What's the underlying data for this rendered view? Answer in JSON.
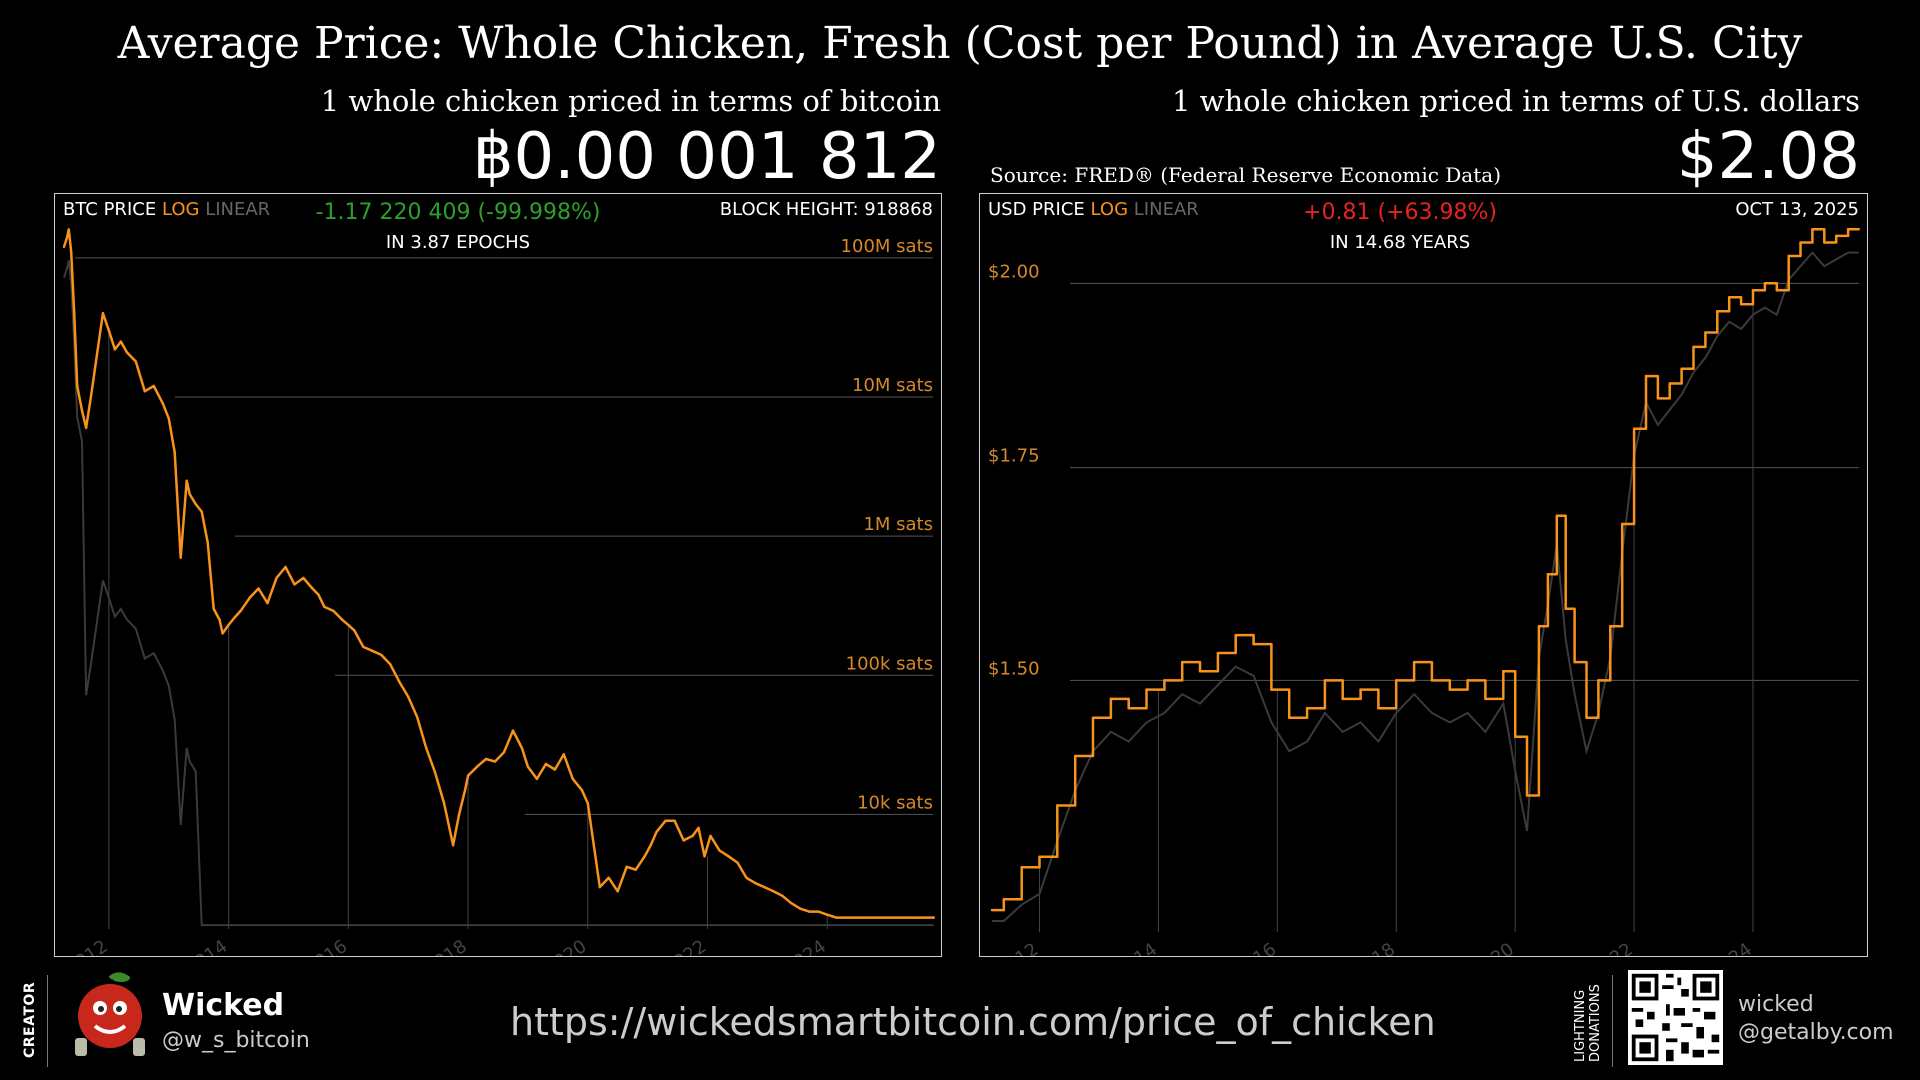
{
  "title": "Average Price: Whole Chicken, Fresh (Cost per Pound) in Average U.S. City",
  "left_header": {
    "subtitle": "1 whole chicken priced in terms of bitcoin",
    "price": "฿0.00 001 812"
  },
  "right_header": {
    "subtitle": "1 whole chicken priced in terms of U.S. dollars",
    "price": "$2.08",
    "source": "Source: FRED® (Federal Reserve Economic Data)"
  },
  "left_panel": {
    "label_price": "BTC PRICE",
    "label_log": "LOG",
    "label_linear": "LINEAR",
    "change": "-1.17 220 409 (-99.998%)",
    "change_period": "IN 3.87 EPOCHS",
    "corner": "BLOCK HEIGHT: 918868"
  },
  "right_panel": {
    "label_price": "USD PRICE",
    "label_log": "LOG",
    "label_linear": "LINEAR",
    "change": "+0.81 (+63.98%)",
    "change_period": "IN 14.68 YEARS",
    "corner": "OCT 13, 2025"
  },
  "colors": {
    "accent": "#f7931a",
    "gray_series": "#3a3a3a",
    "gridline": "#555555",
    "up": "#e8231e",
    "down": "#2ca02c"
  },
  "chart_data": [
    {
      "type": "line",
      "scale": "log",
      "unit": "sats",
      "ylabel_ticks": [
        "100M sats",
        "10M sats",
        "1M sats",
        "100k sats",
        "10k sats"
      ],
      "ytick_values": [
        100000000,
        10000000,
        1000000,
        100000,
        10000
      ],
      "ylim": [
        1500,
        200000000
      ],
      "xlim": [
        2011.2,
        2025.8
      ],
      "xticks": [
        "2012",
        "2014",
        "2016",
        "2018",
        "2020",
        "2022",
        "2024"
      ],
      "series": [
        {
          "x": [
            2011.25,
            2011.3,
            2011.33,
            2011.37,
            2011.42,
            2011.47,
            2011.55,
            2011.62,
            2011.7,
            2011.8,
            2011.9,
            2012.0,
            2012.1,
            2012.2,
            2012.3,
            2012.45,
            2012.6,
            2012.75,
            2012.9,
            2013.0,
            2013.1,
            2013.2,
            2013.3,
            2013.35,
            2013.45,
            2013.55,
            2013.65,
            2013.75,
            2013.85,
            2013.9,
            2014.0,
            2014.1,
            2014.2,
            2014.35,
            2014.5,
            2014.65,
            2014.8,
            2014.95,
            2015.1,
            2015.25,
            2015.4,
            2015.5,
            2015.6,
            2015.75,
            2015.9,
            2016.0,
            2016.1,
            2016.25,
            2016.4,
            2016.55,
            2016.7,
            2016.85,
            2017.0,
            2017.15,
            2017.3,
            2017.45,
            2017.6,
            2017.75,
            2017.85,
            2017.95,
            2018.0,
            2018.15,
            2018.3,
            2018.45,
            2018.6,
            2018.75,
            2018.9,
            2019.0,
            2019.15,
            2019.3,
            2019.45,
            2019.6,
            2019.75,
            2019.9,
            2020.0,
            2020.1,
            2020.2,
            2020.35,
            2020.5,
            2020.65,
            2020.8,
            2020.95,
            2021.05,
            2021.15,
            2021.3,
            2021.45,
            2021.6,
            2021.75,
            2021.85,
            2021.95,
            2022.05,
            2022.2,
            2022.35,
            2022.5,
            2022.65,
            2022.8,
            2022.95,
            2023.1,
            2023.25,
            2023.4,
            2023.55,
            2023.7,
            2023.85,
            2024.0,
            2024.15,
            2024.3,
            2024.45,
            2024.6,
            2024.75,
            2024.9,
            2025.05,
            2025.2,
            2025.35,
            2025.5,
            2025.65,
            2025.78
          ],
          "values": [
            120000000,
            140000000,
            160000000,
            110000000,
            40000000,
            12000000,
            8000000,
            6000000,
            10000000,
            20000000,
            40000000,
            30000000,
            22000000,
            25000000,
            21000000,
            18000000,
            11000000,
            12000000,
            9000000,
            7000000,
            4000000,
            700000,
            2500000,
            2000000,
            1700000,
            1500000,
            900000,
            300000,
            250000,
            200000,
            230000,
            260000,
            290000,
            360000,
            420000,
            330000,
            500000,
            600000,
            450000,
            500000,
            420000,
            380000,
            310000,
            290000,
            250000,
            230000,
            210000,
            160000,
            150000,
            140000,
            120000,
            90000,
            70000,
            50000,
            30000,
            20000,
            12000,
            6000,
            10000,
            15000,
            19000,
            22000,
            25000,
            24000,
            28000,
            40000,
            30000,
            22000,
            18000,
            23000,
            21000,
            27000,
            18000,
            15000,
            12000,
            6000,
            3000,
            3500,
            2800,
            4200,
            4000,
            5000,
            6000,
            7500,
            9000,
            9000,
            6500,
            7000,
            8000,
            5000,
            7000,
            5500,
            5000,
            4500,
            3500,
            3200,
            3000,
            2800,
            2600,
            2300,
            2100,
            2000,
            2000,
            1900,
            1812,
            1812,
            1812,
            1812,
            1812,
            1812,
            1812,
            1812,
            1812,
            1812,
            1812,
            1812
          ],
          "sample": "approximate"
        }
      ]
    },
    {
      "type": "line",
      "scale": "log",
      "unit": "USD",
      "ylabel_ticks": [
        "$2.00",
        "$1.75",
        "$1.50"
      ],
      "ytick_values": [
        2.0,
        1.75,
        1.5
      ],
      "ylim": [
        1.25,
        2.1
      ],
      "xlim": [
        2011.1,
        2025.8
      ],
      "xticks": [
        "2012",
        "2014",
        "2016",
        "2018",
        "2020",
        "2022",
        "2024"
      ],
      "series": [
        {
          "x": [
            2011.2,
            2011.4,
            2011.7,
            2012.0,
            2012.3,
            2012.6,
            2012.9,
            2013.2,
            2013.5,
            2013.8,
            2014.1,
            2014.4,
            2014.7,
            2015.0,
            2015.3,
            2015.6,
            2015.9,
            2016.2,
            2016.5,
            2016.8,
            2017.1,
            2017.4,
            2017.7,
            2018.0,
            2018.3,
            2018.6,
            2018.9,
            2019.2,
            2019.5,
            2019.8,
            2020.0,
            2020.2,
            2020.4,
            2020.55,
            2020.7,
            2020.85,
            2021.0,
            2021.2,
            2021.4,
            2021.6,
            2021.8,
            2022.0,
            2022.2,
            2022.4,
            2022.6,
            2022.8,
            2023.0,
            2023.2,
            2023.4,
            2023.6,
            2023.8,
            2024.0,
            2024.2,
            2024.4,
            2024.6,
            2024.8,
            2025.0,
            2025.2,
            2025.4,
            2025.6,
            2025.78
          ],
          "values": [
            1.27,
            1.28,
            1.31,
            1.32,
            1.37,
            1.42,
            1.46,
            1.48,
            1.47,
            1.49,
            1.5,
            1.52,
            1.51,
            1.53,
            1.55,
            1.54,
            1.49,
            1.46,
            1.47,
            1.5,
            1.48,
            1.49,
            1.47,
            1.5,
            1.52,
            1.5,
            1.49,
            1.5,
            1.48,
            1.51,
            1.44,
            1.38,
            1.56,
            1.62,
            1.69,
            1.58,
            1.52,
            1.46,
            1.5,
            1.56,
            1.68,
            1.8,
            1.87,
            1.84,
            1.86,
            1.88,
            1.91,
            1.93,
            1.96,
            1.98,
            1.97,
            1.99,
            2.0,
            1.99,
            2.04,
            2.06,
            2.08,
            2.06,
            2.07,
            2.08,
            2.08
          ],
          "sample": "approximate"
        }
      ]
    }
  ],
  "footer": {
    "creator_label": "CREATOR",
    "creator_name": "Wicked",
    "creator_handle": "@w_s_bitcoin",
    "url": "https://wickedsmartbitcoin.com/price_of_chicken",
    "lightning_label": "LIGHTNING DONATIONS",
    "ln_address_line1": "wicked",
    "ln_address_line2": "@getalby.com"
  }
}
